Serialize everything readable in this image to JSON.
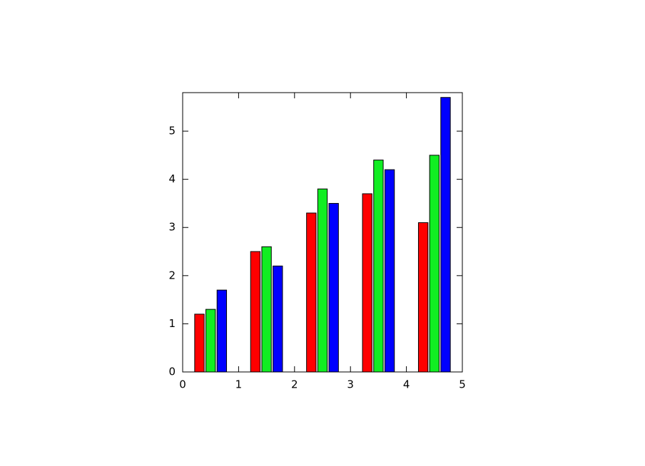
{
  "chart_data": {
    "type": "bar",
    "x": [
      0.5,
      1.5,
      2.5,
      3.5,
      4.5
    ],
    "series": [
      {
        "color": "#ff0000",
        "values": [
          1.2,
          2.5,
          3.3,
          3.7,
          3.1
        ]
      },
      {
        "color": "#11ee22",
        "values": [
          1.3,
          2.6,
          3.8,
          4.4,
          4.5
        ]
      },
      {
        "color": "#0000ff",
        "values": [
          1.7,
          2.2,
          3.5,
          4.2,
          5.7
        ]
      }
    ],
    "xlim": [
      0,
      5
    ],
    "xticks": [
      0,
      1,
      2,
      3,
      4,
      5
    ],
    "ylim": [
      0,
      5.8
    ],
    "yticks": [
      0,
      1,
      2,
      3,
      4,
      5
    ]
  }
}
